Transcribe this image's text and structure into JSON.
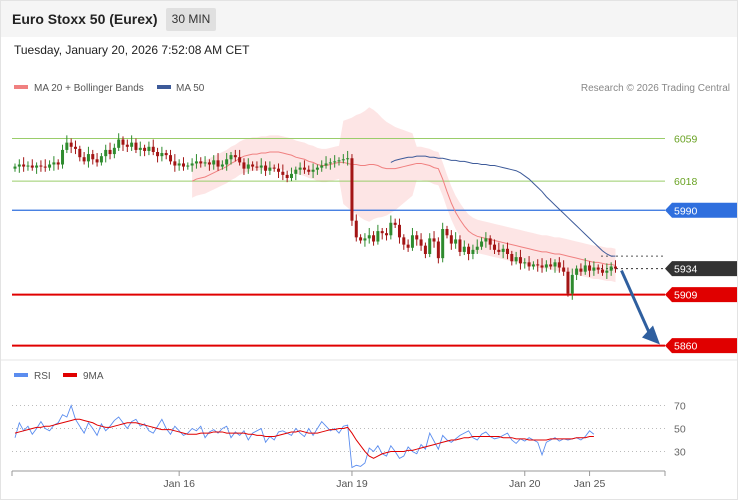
{
  "header": {
    "title": "Euro Stoxx 50 (Eurex)",
    "interval": "30 MIN",
    "datetime": "Tuesday, January 20, 2026 7:52:08 AM CET"
  },
  "copyright": "Research © 2026 Trading Central",
  "colors": {
    "up_candle": "#2e8b2e",
    "down_candle": "#a31515",
    "bollinger_fill": "#fde4e4",
    "ma20": "#f08080",
    "ma50": "#3d5a99",
    "resistance_line": "#9acd6a",
    "pivot_line": "#2f6fde",
    "support_line": "#e00000",
    "current_price": "#333333",
    "arrow": "#2f5f9f",
    "rsi": "#5b8def",
    "rsi_ma": "#e00000"
  },
  "chart_data": [
    {
      "type": "candlestick",
      "title": "Euro Stoxx 50 (Eurex)",
      "interval": "30 MIN",
      "ylim": [
        5850,
        6095
      ],
      "legend": [
        {
          "name": "MA 20 + Bollinger Bands",
          "color": "#f08080"
        },
        {
          "name": "MA 50",
          "color": "#3d5a99"
        }
      ],
      "x_ticks": [
        {
          "label": "Jan 16",
          "index": 38
        },
        {
          "label": "Jan 19",
          "index": 78
        },
        {
          "label": "Jan 20",
          "index": 118
        },
        {
          "label": "Jan 25",
          "index": 133
        }
      ],
      "levels": [
        {
          "label": "6059",
          "value": 6059,
          "role": "resistance"
        },
        {
          "label": "6018",
          "value": 6018,
          "role": "resistance"
        },
        {
          "label": "5990",
          "value": 5990,
          "role": "pivot"
        },
        {
          "label": "5934",
          "value": 5934,
          "role": "current"
        },
        {
          "label": "5909",
          "value": 5909,
          "role": "support"
        },
        {
          "label": "5860",
          "value": 5860,
          "role": "support"
        }
      ],
      "closes": [
        6032,
        6034,
        6032,
        6033,
        6031,
        6033,
        6032,
        6031,
        6034,
        6036,
        6034,
        6048,
        6055,
        6051,
        6049,
        6041,
        6037,
        6044,
        6039,
        6036,
        6042,
        6048,
        6044,
        6050,
        6058,
        6053,
        6051,
        6055,
        6048,
        6050,
        6047,
        6051,
        6046,
        6042,
        6045,
        6043,
        6037,
        6033,
        6035,
        6032,
        6033,
        6035,
        6037,
        6035,
        6036,
        6034,
        6038,
        6032,
        6034,
        6039,
        6043,
        6041,
        6036,
        6030,
        6034,
        6032,
        6031,
        6033,
        6028,
        6031,
        6030,
        6027,
        6024,
        6021,
        6025,
        6029,
        6031,
        6029,
        6027,
        6029,
        6031,
        6033,
        6035,
        6036,
        6037,
        6038,
        6039,
        6040,
        5980,
        5964,
        5961,
        5963,
        5966,
        5960,
        5970,
        5968,
        5966,
        5978,
        5976,
        5964,
        5957,
        5954,
        5966,
        5962,
        5956,
        5948,
        5963,
        5960,
        5944,
        5972,
        5966,
        5958,
        5962,
        5950,
        5955,
        5948,
        5952,
        5955,
        5960,
        5963,
        5957,
        5952,
        5950,
        5953,
        5948,
        5941,
        5945,
        5939,
        5940,
        5936,
        5938,
        5937,
        5935,
        5938,
        5936,
        5940,
        5935,
        5931,
        5910,
        5928,
        5934,
        5931,
        5937,
        5932,
        5935,
        5933,
        5930,
        5932,
        5936,
        5934
      ],
      "ma20": [
        6018,
        6020,
        6021,
        6022,
        6024,
        6026,
        6028,
        6030,
        6032,
        6035,
        6037,
        6040,
        6042,
        6043,
        6044,
        6044,
        6045,
        6045,
        6046,
        6046,
        6046,
        6045,
        6044,
        6043,
        6041,
        6040,
        6039,
        6037,
        6036,
        6034,
        6033,
        6033,
        6034,
        6035,
        6036,
        6036,
        6035,
        6034,
        6034,
        6033,
        6033,
        6034,
        6034,
        6033,
        6031,
        6030,
        6030,
        6030,
        6031,
        6032,
        6033,
        6034,
        6035,
        6035,
        6034,
        6033,
        6031,
        6030,
        6020,
        6008,
        5997,
        5988,
        5981,
        5975,
        5970,
        5967,
        5965,
        5964,
        5963,
        5962,
        5961,
        5960,
        5959,
        5958,
        5957,
        5956,
        5955,
        5954,
        5953,
        5952,
        5951,
        5950,
        5950,
        5949,
        5948,
        5948,
        5947,
        5946,
        5945,
        5944,
        5943,
        5942,
        5941,
        5940,
        5940,
        5939,
        5938,
        5938,
        5937
      ],
      "ma50": [
        6036,
        6038,
        6039,
        6040,
        6041,
        6041,
        6042,
        6042,
        6042,
        6041,
        6041,
        6040,
        6040,
        6039,
        6038,
        6038,
        6037,
        6037,
        6036,
        6035,
        6035,
        6034,
        6034,
        6033,
        6033,
        6032,
        6031,
        6030,
        6029,
        6028,
        6026,
        6023,
        6020,
        6016,
        6012,
        6008,
        6003,
        5999,
        5995,
        5991,
        5987,
        5983,
        5979,
        5975,
        5971,
        5967,
        5963,
        5959,
        5955,
        5951,
        5948,
        5946,
        5946
      ]
    },
    {
      "type": "line",
      "legend": [
        {
          "name": "RSI",
          "color": "#5b8def"
        },
        {
          "name": "9MA",
          "color": "#e00000"
        }
      ],
      "ylim": [
        13,
        87
      ],
      "y_ticks": [
        "70",
        "50",
        "30"
      ],
      "series": [
        {
          "name": "RSI",
          "values": [
            42,
            55,
            48,
            52,
            45,
            50,
            56,
            50,
            48,
            53,
            55,
            62,
            60,
            70,
            58,
            52,
            46,
            55,
            50,
            44,
            54,
            48,
            52,
            57,
            60,
            55,
            50,
            56,
            58,
            52,
            54,
            48,
            46,
            52,
            58,
            50,
            45,
            52,
            48,
            44,
            46,
            50,
            48,
            52,
            42,
            47,
            49,
            46,
            50,
            52,
            42,
            47,
            44,
            48,
            40,
            46,
            48,
            50,
            38,
            43,
            40,
            47,
            48,
            46,
            44,
            50,
            46,
            43,
            50,
            44,
            50,
            56,
            52,
            48,
            50,
            46,
            52,
            53,
            16,
            18,
            17,
            20,
            33,
            30,
            35,
            28,
            26,
            35,
            30,
            24,
            26,
            34,
            30,
            28,
            36,
            32,
            46,
            39,
            32,
            44,
            40,
            38,
            41,
            44,
            46,
            48,
            42,
            40,
            45,
            47,
            43,
            41,
            42,
            44,
            46,
            40,
            37,
            41,
            39,
            42,
            40,
            38,
            27,
            38,
            40,
            42,
            39,
            41,
            40,
            41,
            42,
            40,
            43,
            48,
            45
          ]
        },
        {
          "name": "9MA",
          "values": [
            46,
            47,
            48,
            49,
            50,
            51,
            51,
            52,
            52,
            53,
            54,
            55,
            56,
            57,
            58,
            58,
            57,
            56,
            55,
            53,
            52,
            51,
            51,
            52,
            53,
            54,
            55,
            55,
            55,
            54,
            53,
            52,
            51,
            50,
            49,
            49,
            49,
            48,
            47,
            46,
            45,
            45,
            45,
            46,
            46,
            46,
            47,
            47,
            47,
            46,
            46,
            46,
            46,
            46,
            45,
            45,
            44,
            44,
            43,
            43,
            43,
            44,
            45,
            46,
            47,
            47,
            48,
            47,
            46,
            46,
            46,
            47,
            48,
            49,
            49,
            50,
            50,
            51,
            46,
            40,
            35,
            30,
            26,
            24,
            26,
            28,
            29,
            30,
            30,
            30,
            30,
            31,
            31,
            32,
            33,
            34,
            35,
            36,
            37,
            38,
            39,
            40,
            40,
            41,
            42,
            42,
            43,
            43,
            43,
            43,
            43,
            43,
            43,
            42,
            42,
            42,
            41,
            41,
            41,
            40,
            40,
            40,
            40,
            40,
            41,
            41,
            41,
            41,
            41,
            41,
            42,
            42,
            42,
            43,
            43
          ]
        }
      ]
    }
  ]
}
